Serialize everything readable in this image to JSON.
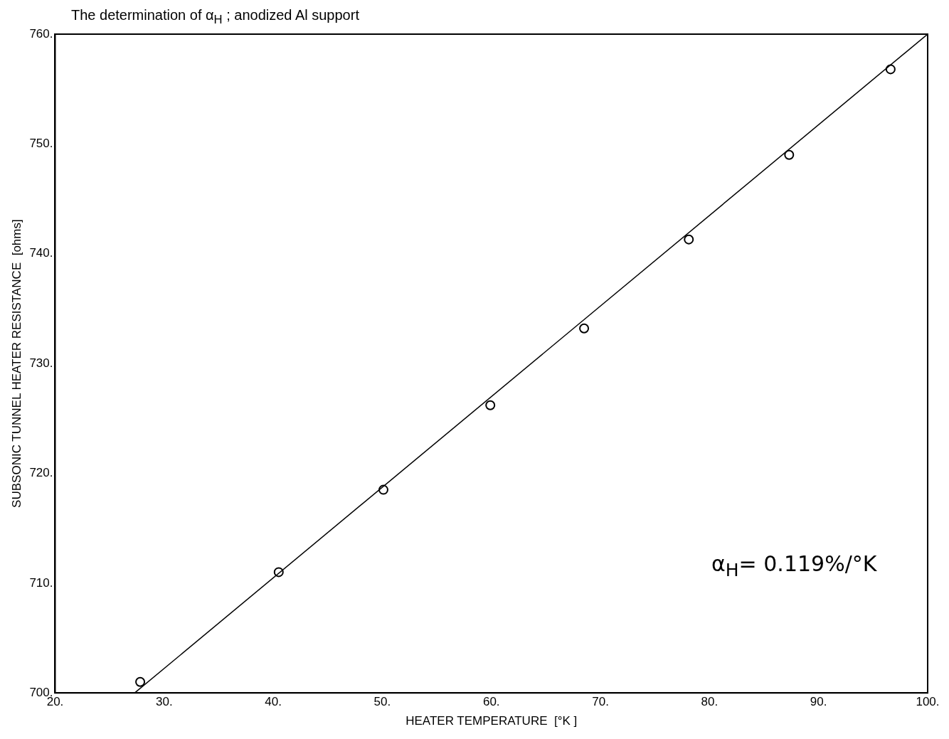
{
  "chart_data": {
    "type": "scatter",
    "title": "The determination of α$_{H}$ ; anodized Al support",
    "xlabel": "HEATER TEMPERATURE  [°K ]",
    "ylabel": "SUBSONIC TUNNEL HEATER RESISTANCE  [ohms]",
    "annotations": [
      "α$_{H}$= 0.119%/°K"
    ],
    "xlim": [
      20,
      100
    ],
    "ylim": [
      700,
      760
    ],
    "xticks": [
      {
        "value": 20,
        "label": "20."
      },
      {
        "value": 30,
        "label": "30."
      },
      {
        "value": 40,
        "label": "40."
      },
      {
        "value": 50,
        "label": "50."
      },
      {
        "value": 60,
        "label": "60."
      },
      {
        "value": 70,
        "label": "70."
      },
      {
        "value": 80,
        "label": "80."
      },
      {
        "value": 90,
        "label": "90."
      },
      {
        "value": 100,
        "label": "100."
      }
    ],
    "yticks": [
      {
        "value": 700,
        "label": "700."
      },
      {
        "value": 710,
        "label": "710."
      },
      {
        "value": 720,
        "label": "720."
      },
      {
        "value": 730,
        "label": "730."
      },
      {
        "value": 740,
        "label": "740."
      },
      {
        "value": 750,
        "label": "750."
      },
      {
        "value": 760,
        "label": "760."
      }
    ],
    "grid": false,
    "legend": false,
    "marker": "circle",
    "series": [
      {
        "color": "#000000",
        "x": [
          27.8,
          40.5,
          50.1,
          59.9,
          68.5,
          78.1,
          87.3,
          96.6
        ],
        "values": [
          701.0,
          711.0,
          718.5,
          726.2,
          733.2,
          741.3,
          749.0,
          756.8
        ]
      },
      {
        "type": "line",
        "color": "#000000",
        "x": [
          27.3,
          100
        ],
        "values": [
          700,
          760
        ],
        "marker": "none",
        "line_style": "solid"
      }
    ]
  }
}
